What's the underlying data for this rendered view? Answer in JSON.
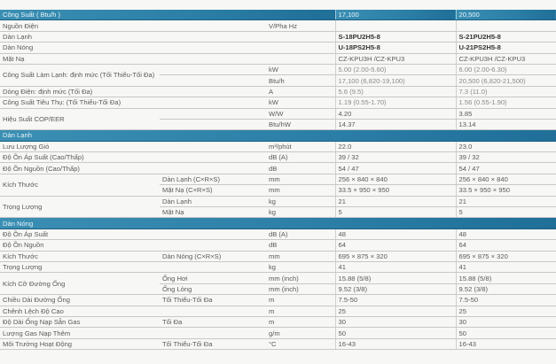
{
  "header": {
    "label": "Công Suất ( Btu/h )",
    "v1": "17,100",
    "v2": "20,500"
  },
  "colors": {
    "section_bar": "#2b7ea6",
    "text": "#5a5a5a",
    "grid": "#c8c8c8"
  },
  "sections": [
    {
      "title": "",
      "rows": [
        {
          "label": "Nguồn Điện",
          "sub": "",
          "unit": "V/Pha Hz",
          "v1": "",
          "v2": ""
        },
        {
          "label": "Dàn Lạnh",
          "sub": "",
          "unit": "",
          "v1": "S-18PU2H5-8",
          "v2": "S-21PU2H5-8",
          "style": "bold"
        },
        {
          "label": "Dàn Nóng",
          "sub": "",
          "unit": "",
          "v1": "U-18PS2H5-8",
          "v2": "U-21PS2H5-8",
          "style": "bold"
        },
        {
          "label": "Mặt Nạ",
          "sub": "",
          "unit": "",
          "v1": "CZ-KPU3H /CZ-KPU3",
          "v2": "CZ-KPU3H /CZ-KPU3"
        },
        {
          "label": "Công Suất Làm Lạnh: định mức (Tối Thiểu-Tối Đa)",
          "sub": "",
          "unit": "kW",
          "v1": "5.00 (2.00-5.60)",
          "v2": "6.00 (2.00-6.30)",
          "style": "light"
        },
        {
          "label": "",
          "sub": "",
          "unit": "Btu/h",
          "v1": "17,100 (6,820-19,100)",
          "v2": "20,500 (6,820-21,500)",
          "style": "light"
        },
        {
          "label": "Dòng Điện: định mức (Tối Đa)",
          "sub": "",
          "unit": "A",
          "v1": "5.6 (9.5)",
          "v2": "7.3 (11.0)",
          "style": "light"
        },
        {
          "label": "Công Suất Tiêu Thụ: (Tối Thiểu-Tối Đa)",
          "sub": "",
          "unit": "kW",
          "v1": "1.19 (0.55-1.70)",
          "v2": "1.56 (0.55-1.90)",
          "style": "light"
        },
        {
          "label": "Hiệu Suất COP/EER",
          "sub": "",
          "unit": "W/W",
          "v1": "4.20",
          "v2": "3.85"
        },
        {
          "label": "",
          "sub": "",
          "unit": "Btu/hW",
          "v1": "14.37",
          "v2": "13.14"
        }
      ]
    },
    {
      "title": "Dàn Lạnh",
      "rows": [
        {
          "label": "Lưu Lượng Gió",
          "sub": "",
          "unit": "m³/phút",
          "v1": "22.0",
          "v2": "23.0"
        },
        {
          "label": "Độ Ồn Áp Suất (Cao/Thấp)",
          "sub": "",
          "unit": "dB (A)",
          "v1": "39 / 32",
          "v2": "39 / 32"
        },
        {
          "label": "Độ Ồn Nguồn (Cao/Thấp)",
          "sub": "",
          "unit": "dB",
          "v1": "54 / 47",
          "v2": "54 / 47"
        },
        {
          "label": "Kích Thước",
          "sub": "Dàn Lạnh (C×R×S)",
          "unit": "mm",
          "v1": "256 × 840 × 840",
          "v2": "256 × 840 × 840"
        },
        {
          "label": "",
          "sub": "Mặt Nạ (C×R×S)",
          "unit": "mm",
          "v1": "33.5 × 950 × 950",
          "v2": "33.5 × 950 × 950"
        },
        {
          "label": "Trọng Lượng",
          "sub": "Dàn Lạnh",
          "unit": "kg",
          "v1": "21",
          "v2": "21"
        },
        {
          "label": "",
          "sub": "Mặt Nạ",
          "unit": "kg",
          "v1": "5",
          "v2": "5"
        }
      ]
    },
    {
      "title": "Dàn Nóng",
      "rows": [
        {
          "label": "Độ Ồn Áp Suất",
          "sub": "",
          "unit": "dB (A)",
          "v1": "48",
          "v2": "48"
        },
        {
          "label": "Độ Ồn Nguồn",
          "sub": "",
          "unit": "dB",
          "v1": "64",
          "v2": "64"
        },
        {
          "label": "Kích Thước",
          "sub": "Dàn Nóng (C×R×S)",
          "unit": "mm",
          "v1": "695 × 875 × 320",
          "v2": "695 × 875 × 320"
        },
        {
          "label": "Trọng Lượng",
          "sub": "",
          "unit": "kg",
          "v1": "41",
          "v2": "41"
        },
        {
          "label": "Kích Cỡ Đường Ống",
          "sub": "Ống Hơi",
          "unit": "mm (inch)",
          "v1": "15.88 (5/8)",
          "v2": "15.88 (5/8)"
        },
        {
          "label": "",
          "sub": "Ống Lỏng",
          "unit": "mm (inch)",
          "v1": "9.52 (3/8)",
          "v2": "9.52 (3/8)"
        },
        {
          "label": "Chiều Dài Đường Ống",
          "sub": "Tối Thiểu-Tối Đa",
          "unit": "m",
          "v1": "7.5-50",
          "v2": "7.5-50"
        },
        {
          "label": "Chênh Lệch Độ Cao",
          "sub": "",
          "unit": "m",
          "v1": "25",
          "v2": "25"
        },
        {
          "label": "Độ Dài Ống Nạp Sẵn Gas",
          "sub": "Tối Đa",
          "unit": "m",
          "v1": "30",
          "v2": "30"
        },
        {
          "label": "Lượng Gas Nạp Thêm",
          "sub": "",
          "unit": "g/m",
          "v1": "50",
          "v2": "50"
        },
        {
          "label": "Môi Trường Hoạt Động",
          "sub": "Tối Thiểu-Tối Đa",
          "unit": "°C",
          "v1": "16-43",
          "v2": "16-43"
        }
      ]
    }
  ]
}
